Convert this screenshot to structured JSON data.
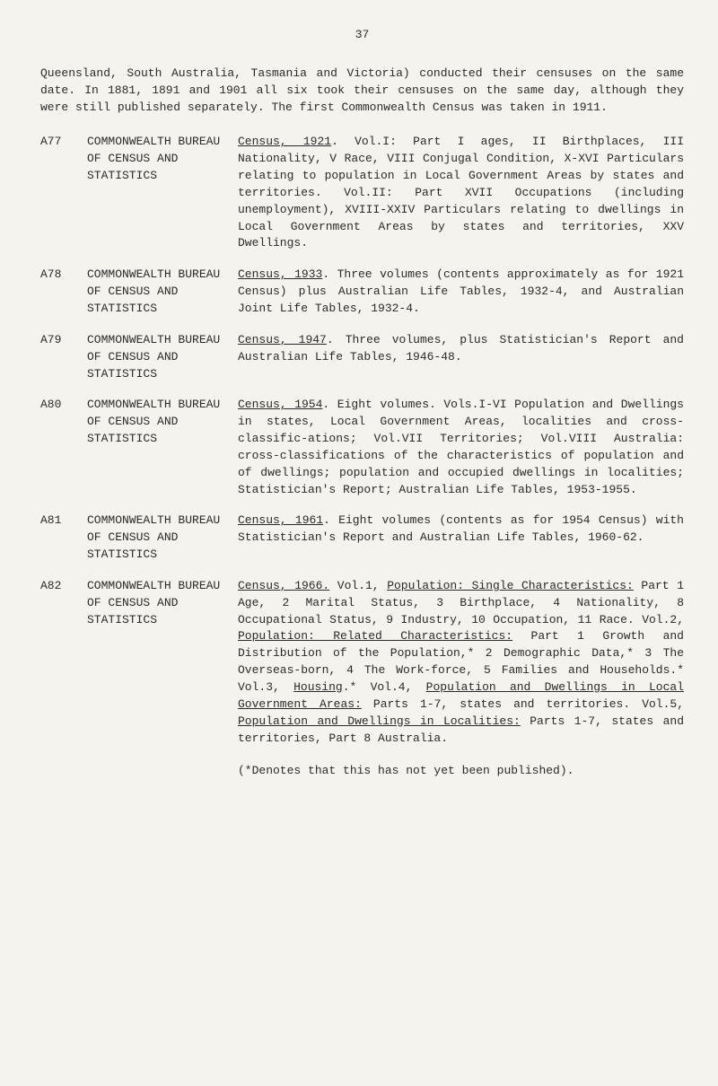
{
  "pageNumber": "37",
  "intro": "Queensland, South Australia, Tasmania and Victoria) conducted their censuses on the same date. In 1881, 1891 and 1901 all six took their censuses on the same day, although they were still published separately. The first Commonwealth Census was taken in 1911.",
  "entries": [
    {
      "ref": "A77",
      "source": "COMMONWEALTH BUREAU OF CENSUS AND STATISTICS",
      "desc_parts": [
        {
          "text": "Census, 1921",
          "u": true
        },
        {
          "text": ". Vol.I: Part I ages, II Birthplaces, III Nationality, V Race, VIII Conjugal Condition, X-XVI Particulars relating to population in Local Government Areas by states and territories. Vol.II: Part XVII Occupations (including unemployment), XVIII-XXIV Particulars relating to dwellings in Local Government Areas by states and territories, XXV Dwellings.",
          "u": false
        }
      ]
    },
    {
      "ref": "A78",
      "source": "COMMONWEALTH BUREAU OF CENSUS AND STATISTICS",
      "desc_parts": [
        {
          "text": "Census, 1933",
          "u": true
        },
        {
          "text": ". Three volumes (contents approximately as for 1921 Census) plus Australian Life Tables, 1932-4, and Australian Joint Life Tables, 1932-4.",
          "u": false
        }
      ]
    },
    {
      "ref": "A79",
      "source": "COMMONWEALTH BUREAU OF CENSUS AND STATISTICS",
      "desc_parts": [
        {
          "text": "Census, 1947",
          "u": true
        },
        {
          "text": ". Three volumes, plus Statistician's Report and Australian Life Tables, 1946-48.",
          "u": false
        }
      ]
    },
    {
      "ref": "A80",
      "source": "COMMONWEALTH BUREAU OF CENSUS AND STATISTICS",
      "desc_parts": [
        {
          "text": "Census, 1954",
          "u": true
        },
        {
          "text": ". Eight volumes. Vols.I-VI Population and Dwellings in states, Local Government Areas, localities and cross-classific-ations; Vol.VII Territories; Vol.VIII Australia: cross-classifications of the characteristics of population and of dwellings; population and occupied dwellings in localities; Statistician's Report; Australian Life Tables, 1953-1955.",
          "u": false
        }
      ]
    },
    {
      "ref": "A81",
      "source": "COMMONWEALTH BUREAU OF CENSUS AND STATISTICS",
      "desc_parts": [
        {
          "text": "Census, 1961",
          "u": true
        },
        {
          "text": ". Eight volumes (contents as for 1954 Census) with Statistician's Report and Australian Life Tables, 1960-62.",
          "u": false
        }
      ]
    },
    {
      "ref": "A82",
      "source": "COMMONWEALTH BUREAU OF CENSUS AND STATISTICS",
      "desc_parts": [
        {
          "text": "Census, 1966.",
          "u": true
        },
        {
          "text": " Vol.1, ",
          "u": false
        },
        {
          "text": "Population: Single Characteristics:",
          "u": true
        },
        {
          "text": " Part 1 Age, 2 Marital Status, 3 Birthplace, 4 Nationality, 8 Occupational Status, 9 Industry, 10 Occupation, 11 Race. Vol.2, ",
          "u": false
        },
        {
          "text": "Population: Related Characteristics:",
          "u": true
        },
        {
          "text": " Part 1 Growth and Distribution of the Population,* 2 Demographic Data,* 3 The Overseas-born, 4 The Work-force, 5 Families and Households.* Vol.3, ",
          "u": false
        },
        {
          "text": "Housing",
          "u": true
        },
        {
          "text": ".* Vol.4, ",
          "u": false
        },
        {
          "text": "Population and Dwellings in Local Government Areas:",
          "u": true
        },
        {
          "text": " Parts 1-7, states and territories. Vol.5, ",
          "u": false
        },
        {
          "text": "Population and Dwellings in Localities:",
          "u": true
        },
        {
          "text": " Parts 1-7, states and territories, Part 8 Australia.",
          "u": false
        }
      ]
    }
  ],
  "footnote": "(*Denotes that this has not yet been published)."
}
